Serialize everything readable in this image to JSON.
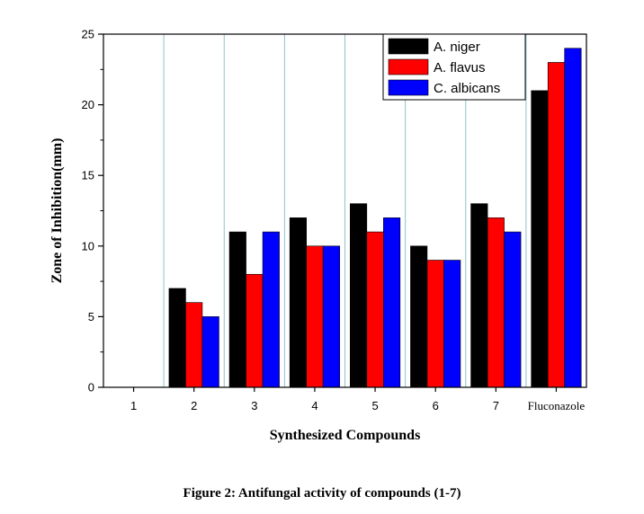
{
  "chart_data": {
    "type": "bar",
    "categories": [
      "1",
      "2",
      "3",
      "4",
      "5",
      "6",
      "7",
      "Fluconazole"
    ],
    "series": [
      {
        "name": "A. niger",
        "color": "#000000",
        "values": [
          0,
          7,
          11,
          12,
          13,
          10,
          13,
          21
        ]
      },
      {
        "name": "A. flavus",
        "color": "#ff0000",
        "values": [
          0,
          6,
          8,
          10,
          11,
          9,
          12,
          23
        ]
      },
      {
        "name": "C. albicans",
        "color": "#0000ff",
        "values": [
          0,
          5,
          11,
          10,
          12,
          9,
          11,
          24
        ]
      }
    ],
    "ylim": [
      0,
      25
    ],
    "yticks": [
      "0",
      "5",
      "10",
      "15",
      "20",
      "25"
    ],
    "xlabel": "Synthesized Compounds",
    "ylabel": "Zone of Inhibition(mm)",
    "grid": "vertical lines between categories",
    "legend_position": "top-right"
  },
  "caption": "Figure 2: Antifungal activity of compounds (1-7)"
}
